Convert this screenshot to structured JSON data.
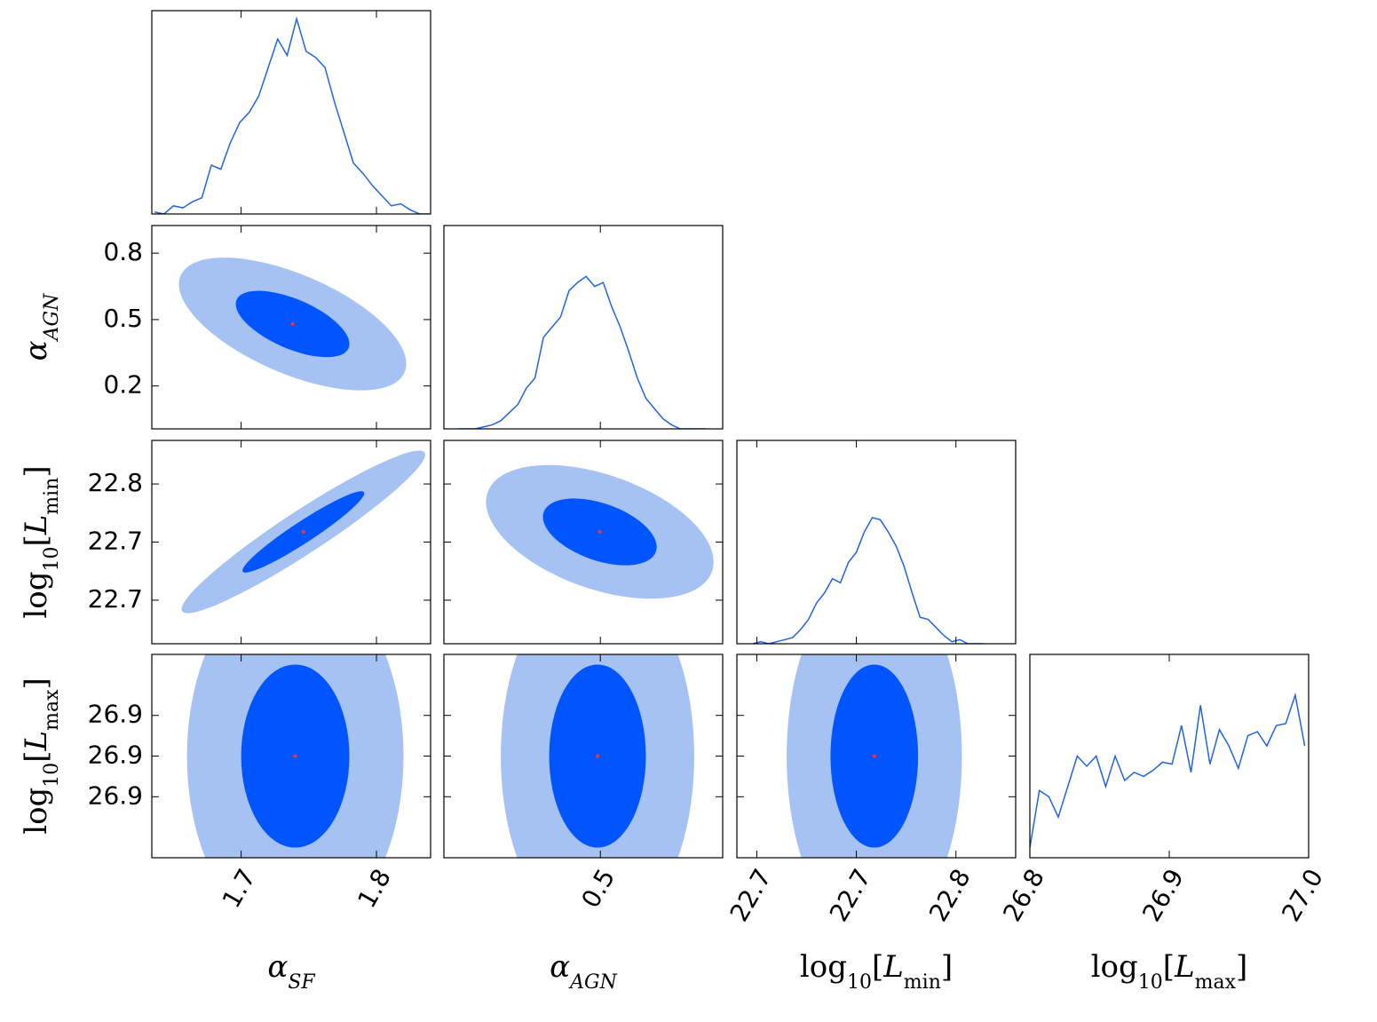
{
  "chart_data": [
    {
      "type": "line",
      "color": "#1f64e0",
      "xlim": [
        1.634,
        1.84
      ],
      "ylim": [
        0,
        1
      ],
      "x": [
        1.636,
        1.643,
        1.65,
        1.657,
        1.664,
        1.671,
        1.678,
        1.685,
        1.692,
        1.699,
        1.706,
        1.713,
        1.72,
        1.727,
        1.734,
        1.741,
        1.748,
        1.755,
        1.762,
        1.769,
        1.776,
        1.783,
        1.79,
        1.797,
        1.804,
        1.811,
        1.818,
        1.825,
        1.832,
        1.839
      ],
      "values": [
        0.01,
        0.0,
        0.04,
        0.03,
        0.06,
        0.08,
        0.24,
        0.22,
        0.35,
        0.45,
        0.5,
        0.58,
        0.72,
        0.86,
        0.78,
        0.96,
        0.8,
        0.77,
        0.72,
        0.55,
        0.4,
        0.25,
        0.2,
        0.14,
        0.09,
        0.04,
        0.05,
        0.02,
        0.0,
        0.0
      ]
    },
    {
      "type": "contour",
      "xlim": [
        1.634,
        1.84
      ],
      "ylim": [
        0.006,
        0.925
      ],
      "mean": [
        1.738,
        0.48
      ],
      "sd": [
        0.042,
        0.15
      ],
      "corr": -0.6,
      "levels": [
        2,
        1
      ],
      "colors": [
        "#a6c2f2",
        "#0055ff"
      ],
      "point_color": "#ff3030",
      "yticks": [
        0.2,
        0.5,
        0.8
      ],
      "ylabel": [
        {
          "text": "α",
          "italic": true
        },
        {
          "text": "AGN",
          "sub": true,
          "italic": true
        }
      ]
    },
    {
      "type": "line",
      "color": "#1f64e0",
      "xlim": [
        -0.05,
        0.93
      ],
      "ylim": [
        0,
        1
      ],
      "x": [
        0.0,
        0.03,
        0.06,
        0.09,
        0.12,
        0.15,
        0.18,
        0.21,
        0.24,
        0.27,
        0.3,
        0.33,
        0.36,
        0.39,
        0.42,
        0.45,
        0.48,
        0.51,
        0.54,
        0.57,
        0.6,
        0.63,
        0.66,
        0.69,
        0.72,
        0.75,
        0.78,
        0.81,
        0.84,
        0.87
      ],
      "values": [
        0,
        0,
        0,
        0.01,
        0.02,
        0.04,
        0.08,
        0.12,
        0.2,
        0.25,
        0.45,
        0.5,
        0.55,
        0.68,
        0.72,
        0.75,
        0.7,
        0.72,
        0.6,
        0.5,
        0.38,
        0.25,
        0.15,
        0.1,
        0.05,
        0.02,
        0,
        0,
        0,
        0
      ]
    },
    {
      "type": "contour",
      "xlim": [
        1.634,
        1.84
      ],
      "ylim": [
        22.66,
        22.8
      ],
      "mean": [
        1.746,
        22.737
      ],
      "sd": [
        0.045,
        0.028
      ],
      "corr": 0.95,
      "levels": [
        2,
        1
      ],
      "colors": [
        "#a6c2f2",
        "#0055ff"
      ],
      "point_color": "#ff3030",
      "yticks": [
        {
          "value": 22.69,
          "label": "22.7"
        },
        {
          "value": 22.73,
          "label": "22.7"
        },
        {
          "value": 22.77,
          "label": "22.8"
        }
      ],
      "ylabel": [
        {
          "text": "log"
        },
        {
          "text": "10",
          "sub": true
        },
        {
          "text": "["
        },
        {
          "text": "L",
          "italic": true
        },
        {
          "text": "min",
          "sub": true
        },
        {
          "text": "]"
        }
      ]
    },
    {
      "type": "contour",
      "xlim": [
        -0.05,
        0.93
      ],
      "ylim": [
        22.66,
        22.8
      ],
      "mean": [
        0.498,
        22.737
      ],
      "sd": [
        0.2,
        0.023
      ],
      "corr": -0.45,
      "levels": [
        2,
        1
      ],
      "colors": [
        "#a6c2f2",
        "#0055ff"
      ],
      "point_color": "#ff3030"
    },
    {
      "type": "line",
      "color": "#1f64e0",
      "xlim": [
        22.66,
        22.8
      ],
      "ylim": [
        0,
        1
      ],
      "x": [
        22.668,
        22.672,
        22.676,
        22.68,
        22.684,
        22.688,
        22.692,
        22.696,
        22.7,
        22.704,
        22.708,
        22.712,
        22.716,
        22.72,
        22.724,
        22.728,
        22.732,
        22.736,
        22.74,
        22.744,
        22.748,
        22.752,
        22.756,
        22.76,
        22.764,
        22.768,
        22.772,
        22.776,
        22.78,
        22.784
      ],
      "values": [
        0.0,
        0.01,
        0.0,
        0.01,
        0.02,
        0.03,
        0.07,
        0.12,
        0.2,
        0.25,
        0.32,
        0.3,
        0.4,
        0.45,
        0.55,
        0.62,
        0.61,
        0.55,
        0.48,
        0.38,
        0.25,
        0.13,
        0.12,
        0.08,
        0.04,
        0.01,
        0.02,
        0.0,
        0.0,
        0.0
      ]
    },
    {
      "type": "contour",
      "xlim": [
        1.634,
        1.84
      ],
      "ylim": [
        26.8,
        27.0
      ],
      "mean": [
        1.74,
        26.9
      ],
      "sd": [
        0.04,
        0.09
      ],
      "corr": 0,
      "levels": [
        2,
        1
      ],
      "colors": [
        "#a6c2f2",
        "#0055ff"
      ],
      "point_color": "#ff3030",
      "xticks": [
        1.7,
        1.8
      ],
      "yticks": [
        {
          "value": 26.86,
          "label": "26.9"
        },
        {
          "value": 26.9,
          "label": "26.9"
        },
        {
          "value": 26.94,
          "label": "26.9"
        }
      ],
      "xlabel": [
        {
          "text": "α",
          "italic": true
        },
        {
          "text": "SF",
          "sub": true,
          "italic": true
        }
      ],
      "ylabel": [
        {
          "text": "log"
        },
        {
          "text": "10",
          "sub": true
        },
        {
          "text": "["
        },
        {
          "text": "L",
          "italic": true
        },
        {
          "text": "max",
          "sub": true
        },
        {
          "text": "]"
        }
      ]
    },
    {
      "type": "contour",
      "xlim": [
        -0.05,
        0.93
      ],
      "ylim": [
        26.8,
        27.0
      ],
      "mean": [
        0.49,
        26.9
      ],
      "sd": [
        0.17,
        0.09
      ],
      "corr": 0,
      "levels": [
        2,
        1
      ],
      "colors": [
        "#a6c2f2",
        "#0055ff"
      ],
      "point_color": "#ff3030",
      "xticks": [
        0.5
      ],
      "xlabel": [
        {
          "text": "α",
          "italic": true
        },
        {
          "text": "AGN",
          "sub": true,
          "italic": true
        }
      ]
    },
    {
      "type": "contour",
      "xlim": [
        22.66,
        22.8
      ],
      "ylim": [
        26.8,
        27.0
      ],
      "mean": [
        22.729,
        26.9
      ],
      "sd": [
        0.022,
        0.09
      ],
      "corr": 0,
      "levels": [
        2,
        1
      ],
      "colors": [
        "#a6c2f2",
        "#0055ff"
      ],
      "point_color": "#ff3030",
      "xticks": [
        {
          "value": 22.67,
          "label": "22.7"
        },
        {
          "value": 22.72,
          "label": "22.7"
        },
        {
          "value": 22.77,
          "label": "22.8"
        }
      ],
      "xlabel": [
        {
          "text": "log"
        },
        {
          "text": "10",
          "sub": true
        },
        {
          "text": "["
        },
        {
          "text": "L",
          "italic": true
        },
        {
          "text": "min",
          "sub": true
        },
        {
          "text": "]"
        }
      ]
    },
    {
      "type": "line",
      "color": "#1f64e0",
      "xlim": [
        26.8,
        27.0
      ],
      "ylim": [
        0,
        1
      ],
      "x": [
        26.8,
        26.8068,
        26.8136,
        26.8204,
        26.8272,
        26.834,
        26.8408,
        26.8476,
        26.8544,
        26.8612,
        26.868,
        26.8748,
        26.8816,
        26.8884,
        26.8952,
        26.902,
        26.9088,
        26.9156,
        26.9224,
        26.9292,
        26.936,
        26.9428,
        26.9496,
        26.9564,
        26.9632,
        26.97,
        26.9768,
        26.9836,
        26.9904,
        26.9972
      ],
      "values": [
        0.05,
        0.33,
        0.3,
        0.2,
        0.35,
        0.5,
        0.45,
        0.5,
        0.35,
        0.5,
        0.38,
        0.42,
        0.4,
        0.43,
        0.47,
        0.46,
        0.65,
        0.42,
        0.75,
        0.46,
        0.63,
        0.55,
        0.44,
        0.6,
        0.62,
        0.55,
        0.65,
        0.66,
        0.8,
        0.55
      ],
      "xticks": [
        26.8,
        26.9,
        {
          "value": 27,
          "label": "27.0"
        }
      ],
      "xlabel": [
        {
          "text": "log"
        },
        {
          "text": "10",
          "sub": true
        },
        {
          "text": "["
        },
        {
          "text": "L",
          "italic": true
        },
        {
          "text": "max",
          "sub": true
        },
        {
          "text": "]"
        }
      ]
    }
  ]
}
